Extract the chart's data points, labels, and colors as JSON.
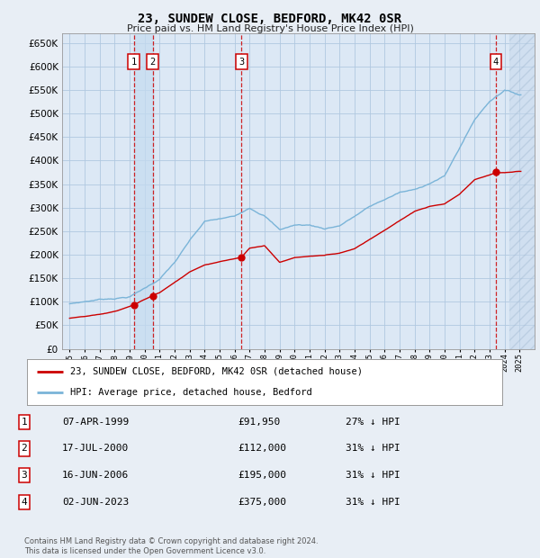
{
  "title": "23, SUNDEW CLOSE, BEDFORD, MK42 0SR",
  "subtitle": "Price paid vs. HM Land Registry's House Price Index (HPI)",
  "property_label": "23, SUNDEW CLOSE, BEDFORD, MK42 0SR (detached house)",
  "hpi_label": "HPI: Average price, detached house, Bedford",
  "footer": "Contains HM Land Registry data © Crown copyright and database right 2024.\nThis data is licensed under the Open Government Licence v3.0.",
  "transactions": [
    {
      "num": 1,
      "date": "07-APR-1999",
      "price": 91950,
      "pct": "27% ↓ HPI",
      "x_year": 1999.27
    },
    {
      "num": 2,
      "date": "17-JUL-2000",
      "price": 112000,
      "pct": "31% ↓ HPI",
      "x_year": 2000.54
    },
    {
      "num": 3,
      "date": "16-JUN-2006",
      "price": 195000,
      "pct": "31% ↓ HPI",
      "x_year": 2006.46
    },
    {
      "num": 4,
      "date": "02-JUN-2023",
      "price": 375000,
      "pct": "31% ↓ HPI",
      "x_year": 2023.42
    }
  ],
  "ylim": [
    0,
    670000
  ],
  "xlim": [
    1994.5,
    2026.0
  ],
  "hpi_color": "#7ab4d8",
  "price_color": "#cc0000",
  "vline_color": "#cc0000",
  "background_color": "#e8eef5",
  "plot_bg_color": "#dce8f5",
  "grid_color": "#b0c8e0",
  "hatch_color": "#c0d4e8",
  "shade_color": "#d8e8f5",
  "hpi_data": {
    "years": [
      1995,
      1996,
      1997,
      1998,
      1999,
      2000,
      2001,
      2002,
      2003,
      2004,
      2005,
      2006,
      2007,
      2008,
      2009,
      2010,
      2011,
      2012,
      2013,
      2014,
      2015,
      2016,
      2017,
      2018,
      2019,
      2020,
      2021,
      2022,
      2023,
      2024,
      2025
    ],
    "values": [
      95000,
      100000,
      105000,
      108000,
      112000,
      130000,
      150000,
      185000,
      230000,
      270000,
      275000,
      280000,
      300000,
      285000,
      255000,
      265000,
      265000,
      258000,
      265000,
      285000,
      305000,
      320000,
      335000,
      340000,
      355000,
      370000,
      430000,
      490000,
      530000,
      555000,
      545000
    ]
  },
  "price_data": {
    "years": [
      1995,
      1996,
      1997,
      1998,
      1999.27,
      2000.54,
      2001,
      2002,
      2003,
      2004,
      2005,
      2006.46,
      2007,
      2008,
      2009,
      2010,
      2011,
      2012,
      2013,
      2014,
      2015,
      2016,
      2017,
      2018,
      2019,
      2020,
      2021,
      2022,
      2023.42,
      2024,
      2025
    ],
    "values": [
      65000,
      68000,
      72000,
      78000,
      91950,
      112000,
      118000,
      140000,
      162000,
      178000,
      185000,
      195000,
      215000,
      220000,
      185000,
      195000,
      198000,
      200000,
      205000,
      215000,
      235000,
      255000,
      275000,
      295000,
      305000,
      310000,
      330000,
      360000,
      375000,
      375000,
      378000
    ]
  }
}
